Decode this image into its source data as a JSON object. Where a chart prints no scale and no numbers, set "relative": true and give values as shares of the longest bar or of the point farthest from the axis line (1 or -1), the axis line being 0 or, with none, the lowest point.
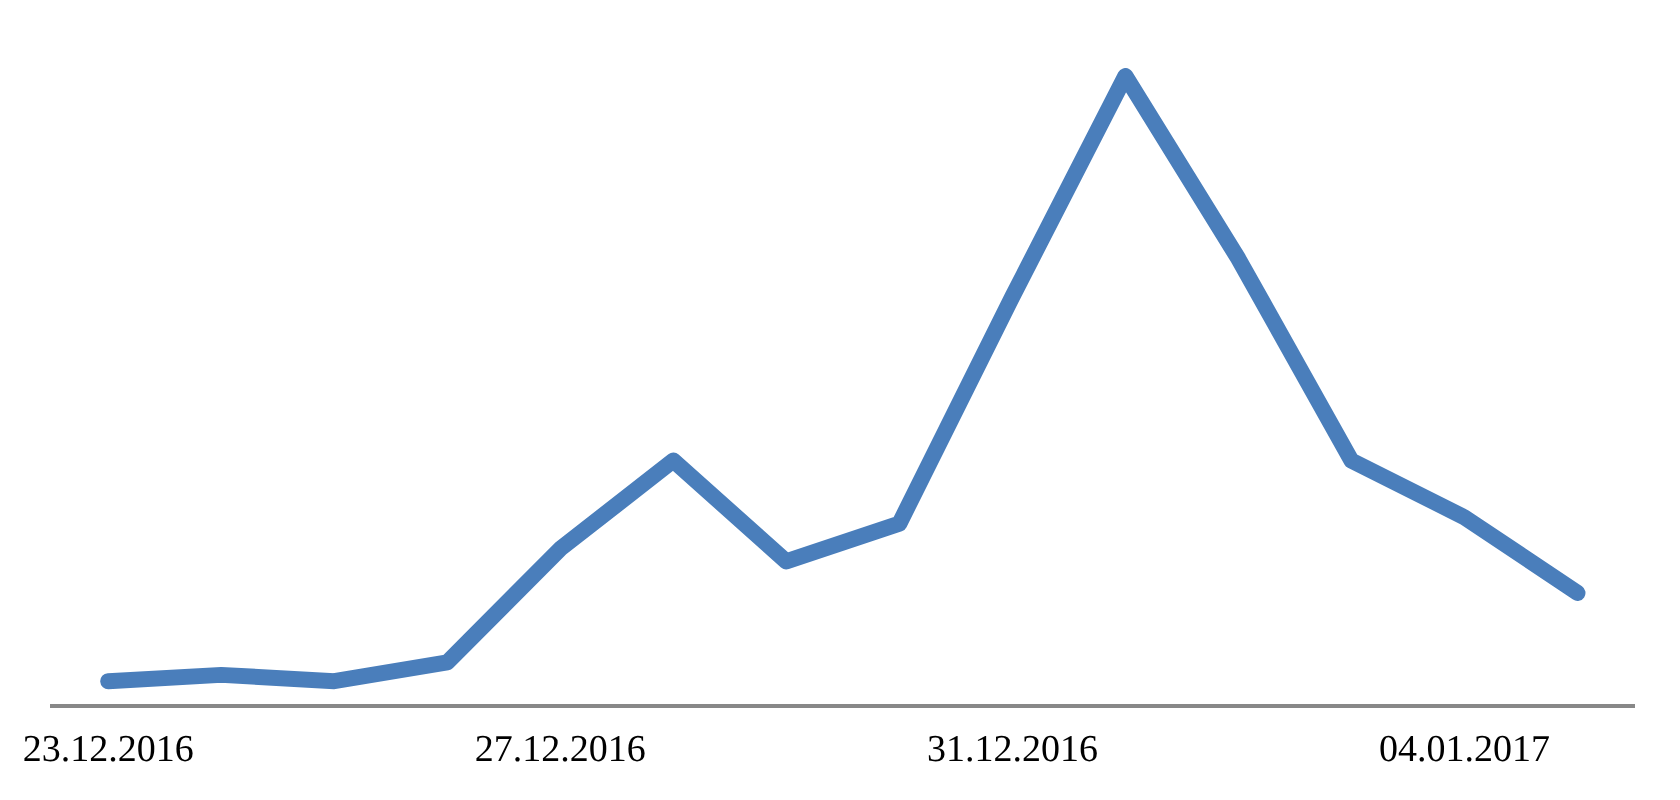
{
  "chart_data": {
    "type": "line",
    "relative": true,
    "categories": [
      "23.12.2016",
      null,
      null,
      null,
      "27.12.2016",
      null,
      null,
      null,
      "31.12.2016",
      null,
      null,
      null,
      "04.01.2017",
      null
    ],
    "series": [
      {
        "color": "#4a7ebb",
        "values": [
          0.04,
          0.05,
          0.04,
          0.07,
          0.25,
          0.39,
          0.23,
          0.29,
          0.65,
          1,
          0.71,
          0.39,
          0.3,
          0.18
        ]
      }
    ],
    "legend": false,
    "marker": "none",
    "line_style": "solid"
  }
}
